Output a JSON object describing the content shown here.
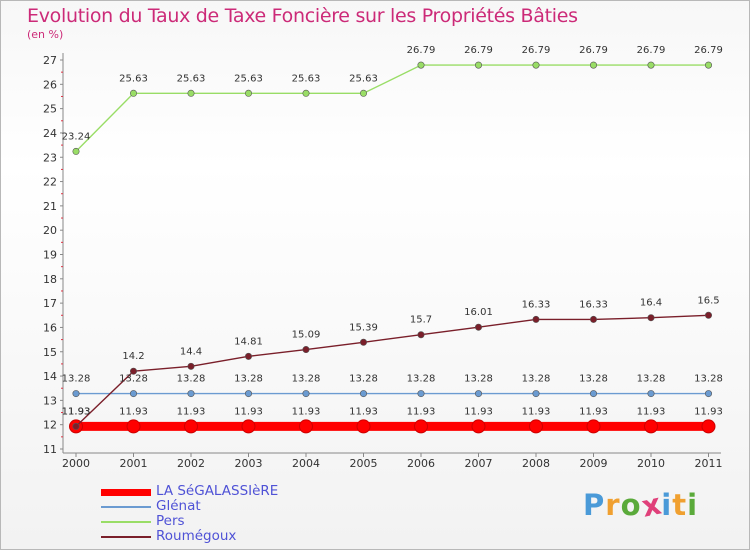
{
  "chart_data": {
    "type": "line",
    "title": "Evolution du Taux de Taxe Foncière sur les Propriétés Bâties",
    "ylabel": "(en %)",
    "xlabel": "",
    "ylim": [
      11,
      27
    ],
    "y_ticks": [
      "11",
      "12",
      "13",
      "14",
      "15",
      "16",
      "17",
      "18",
      "19",
      "20",
      "21",
      "22",
      "23",
      "24",
      "25",
      "26",
      "27"
    ],
    "categories": [
      "2000",
      "2001",
      "2002",
      "2003",
      "2004",
      "2005",
      "2006",
      "2007",
      "2008",
      "2009",
      "2010",
      "2011"
    ],
    "series": [
      {
        "name": "LA SéGALASSIèRE",
        "color": "#ff0000",
        "values": [
          11.93,
          11.93,
          11.93,
          11.93,
          11.93,
          11.93,
          11.93,
          11.93,
          11.93,
          11.93,
          11.93,
          11.93
        ],
        "labels": [
          "11.93",
          "11.93",
          "11.93",
          "11.93",
          "11.93",
          "11.93",
          "11.93",
          "11.93",
          "11.93",
          "11.93",
          "11.93",
          "11.93"
        ]
      },
      {
        "name": "Glénat",
        "color": "#6b9bd1",
        "values": [
          13.28,
          13.28,
          13.28,
          13.28,
          13.28,
          13.28,
          13.28,
          13.28,
          13.28,
          13.28,
          13.28,
          13.28
        ],
        "labels": [
          "13.28",
          "13.28",
          "13.28",
          "13.28",
          "13.28",
          "13.28",
          "13.28",
          "13.28",
          "13.28",
          "13.28",
          "13.28",
          "13.28"
        ]
      },
      {
        "name": "Pers",
        "color": "#99dd66",
        "values": [
          23.24,
          25.63,
          25.63,
          25.63,
          25.63,
          25.63,
          26.79,
          26.79,
          26.79,
          26.79,
          26.79,
          26.79
        ],
        "labels": [
          "23.24",
          "25.63",
          "25.63",
          "25.63",
          "25.63",
          "25.63",
          "26.79",
          "26.79",
          "26.79",
          "26.79",
          "26.79",
          "26.79"
        ]
      },
      {
        "name": "Roumégoux",
        "color": "#7a1f2a",
        "values": [
          11.93,
          14.2,
          14.4,
          14.81,
          15.09,
          15.39,
          15.7,
          16.01,
          16.33,
          16.33,
          16.4,
          16.5
        ],
        "labels": [
          "11.93",
          "14.2",
          "14.4",
          "14.81",
          "15.09",
          "15.39",
          "15.7",
          "16.01",
          "16.33",
          "16.33",
          "16.4",
          "16.5"
        ]
      }
    ],
    "legend_position": "bottom-left"
  },
  "brand": {
    "letters": [
      "P",
      "r",
      "o",
      "x",
      "i",
      "t",
      "i"
    ],
    "colors": [
      "#4a9ad8",
      "#f0a030",
      "#5aaa3a",
      "#e0407a",
      "#4a9ad8",
      "#f0a030",
      "#5aaa3a"
    ]
  }
}
